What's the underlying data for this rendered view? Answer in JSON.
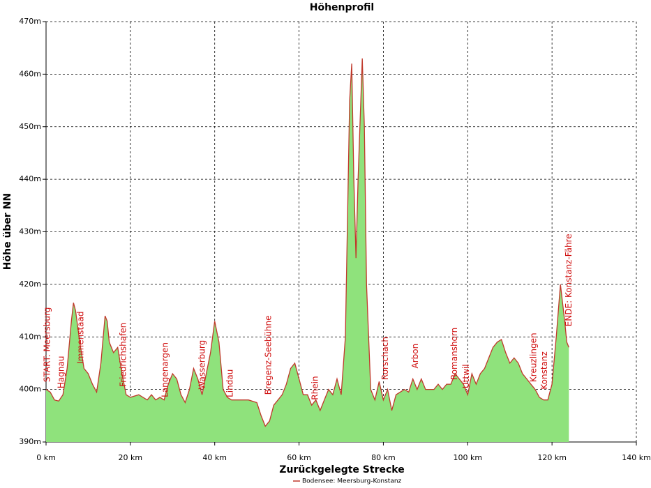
{
  "chart_data": {
    "type": "area",
    "title": "Höhenprofil",
    "x_label": "Zurückgelegte Strecke",
    "y_label": "Höhe über NN",
    "xlim": [
      0,
      140
    ],
    "ylim": [
      390,
      470
    ],
    "xticks": [
      {
        "value": 0,
        "label": "0 km"
      },
      {
        "value": 20,
        "label": "20 km"
      },
      {
        "value": 40,
        "label": "40 km"
      },
      {
        "value": 60,
        "label": "60 km"
      },
      {
        "value": 80,
        "label": "80 km"
      },
      {
        "value": 100,
        "label": "100 km"
      },
      {
        "value": 120,
        "label": "120 km"
      },
      {
        "value": 140,
        "label": "140 km"
      }
    ],
    "yticks": [
      {
        "value": 390,
        "label": "390m"
      },
      {
        "value": 400,
        "label": "400m"
      },
      {
        "value": 410,
        "label": "410m"
      },
      {
        "value": 420,
        "label": "420m"
      },
      {
        "value": 430,
        "label": "430m"
      },
      {
        "value": 440,
        "label": "440m"
      },
      {
        "value": 450,
        "label": "450m"
      },
      {
        "value": 460,
        "label": "460m"
      },
      {
        "value": 470,
        "label": "470m"
      }
    ],
    "grid": true,
    "legend_position": "bottom",
    "series": [
      {
        "name": "Bodensee: Meersburg-Konstanz",
        "color": "#c0392b",
        "fill": "#8fe27c",
        "x": [
          0,
          1,
          2,
          3,
          4,
          5,
          6,
          6.5,
          7,
          8,
          9,
          10,
          11,
          12,
          13,
          14,
          14.5,
          15,
          16,
          17,
          18,
          19,
          20,
          22,
          24,
          25,
          26,
          27,
          28,
          29,
          30,
          31,
          32,
          33,
          34,
          35,
          36,
          37,
          38,
          39,
          40,
          41,
          42,
          43,
          44,
          46,
          48,
          50,
          51,
          52,
          53,
          54,
          55,
          56,
          57,
          58,
          59,
          60,
          61,
          62,
          63,
          64,
          65,
          66,
          67,
          68,
          69,
          70,
          71,
          72,
          72.5,
          73,
          73.5,
          74,
          75,
          75.5,
          76,
          77,
          78,
          79,
          80,
          81,
          82,
          83,
          84,
          85,
          86,
          87,
          88,
          89,
          90,
          92,
          93,
          94,
          95,
          96,
          97,
          98,
          99,
          100,
          101,
          102,
          103,
          104,
          105,
          106,
          107,
          108,
          109,
          110,
          111,
          112,
          113,
          114,
          115,
          116,
          117,
          118,
          119,
          120,
          121,
          122,
          123,
          123.5,
          124
        ],
        "values": [
          400,
          399.5,
          398,
          397.8,
          399,
          404,
          413,
          416.5,
          415,
          409,
          404,
          403,
          401,
          399.5,
          405,
          414,
          413,
          409,
          407,
          408,
          403,
          399,
          398.5,
          399,
          398,
          399,
          398,
          398.5,
          398,
          401,
          403,
          402,
          399,
          397.5,
          400,
          404,
          402,
          399,
          403,
          407,
          413,
          409,
          400,
          398.5,
          398,
          398,
          398,
          397.5,
          395,
          393,
          394,
          397,
          398,
          399,
          401,
          404,
          405,
          402,
          399,
          399,
          397,
          398,
          396,
          398,
          400,
          399,
          402,
          399,
          410,
          455,
          462,
          440,
          425,
          440,
          463,
          450,
          420,
          400,
          398,
          401.5,
          398,
          400,
          396,
          399,
          399.5,
          400,
          399.5,
          402,
          400,
          402,
          400,
          400,
          401,
          400,
          401,
          401,
          403,
          402,
          401,
          399,
          403,
          401,
          403,
          404,
          406,
          408,
          409,
          409.5,
          407,
          405,
          406,
          405,
          403,
          402,
          401,
          400,
          398.5,
          398,
          398,
          401,
          410,
          420,
          413,
          409,
          408
        ]
      }
    ],
    "annotations": [
      {
        "label": "START: Meersburg",
        "x": 0.3,
        "y": 401.4
      },
      {
        "label": "Hagnau",
        "x": 3.6,
        "y": 400.2
      },
      {
        "label": "Immenstaad",
        "x": 8.3,
        "y": 404.9
      },
      {
        "label": "Friedrichshafen",
        "x": 18.4,
        "y": 400.5
      },
      {
        "label": "Langenargen",
        "x": 28.3,
        "y": 398.5
      },
      {
        "label": "Wasserburg",
        "x": 37.1,
        "y": 400
      },
      {
        "label": "Lindau",
        "x": 43.7,
        "y": 398.5
      },
      {
        "label": "Bregenz-Seebühne",
        "x": 52.8,
        "y": 399
      },
      {
        "label": "Rhein",
        "x": 63.9,
        "y": 398
      },
      {
        "label": "Rorschach",
        "x": 80.5,
        "y": 401.8
      },
      {
        "label": "Arbon",
        "x": 87.6,
        "y": 404
      },
      {
        "label": "Romanshorn",
        "x": 96.9,
        "y": 401.8
      },
      {
        "label": "Uttwil",
        "x": 99.7,
        "y": 400.2
      },
      {
        "label": "Kreuzlingen",
        "x": 115.7,
        "y": 401.4
      },
      {
        "label": "Konstanz",
        "x": 118.2,
        "y": 400
      },
      {
        "label": "ENDE: Konstanz-Fähre",
        "x": 124,
        "y": 412
      }
    ]
  }
}
